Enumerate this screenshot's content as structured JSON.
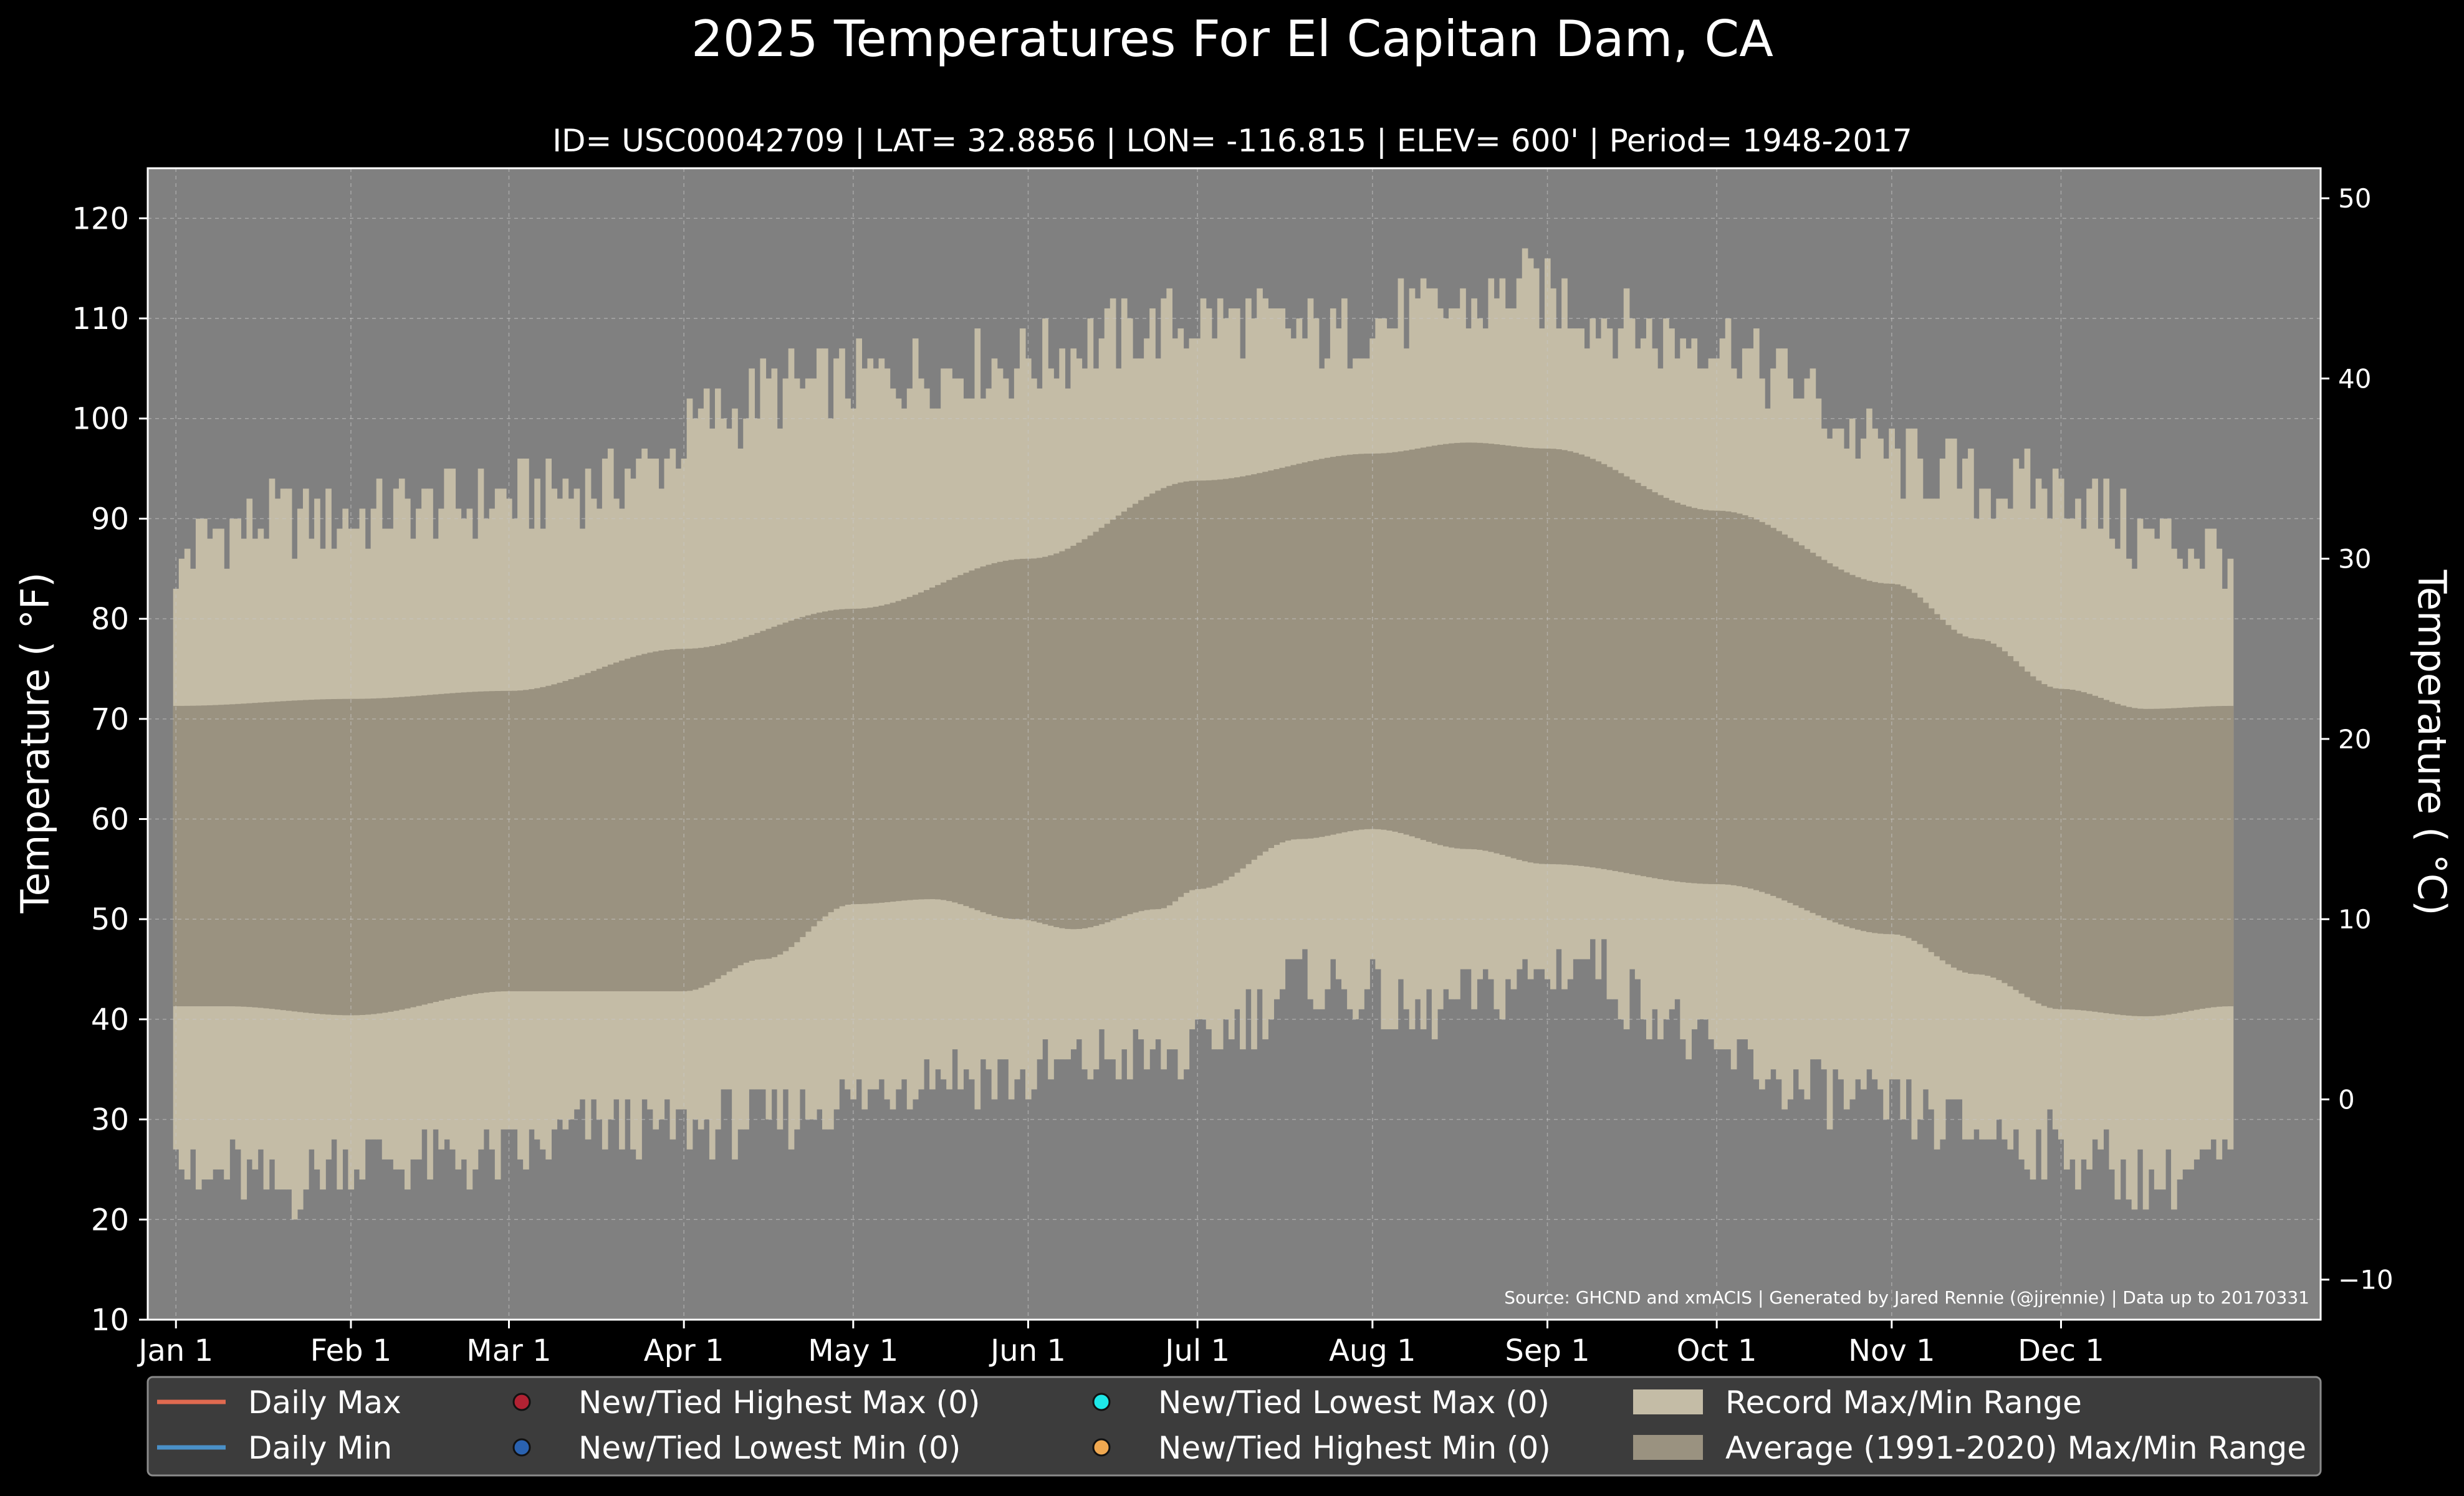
{
  "title": "2025 Temperatures For El Capitan Dam, CA",
  "subtitle": "ID= USC00042709 | LAT= 32.8856 | LON= -116.815 | ELEV= 600' | Period= 1948-2017",
  "source": "Source: GHCND and xmACIS | Generated by Jared Rennie (@jjrennie) | Data up to 20170331",
  "colors": {
    "background": "#000000",
    "plot_bg": "#808080",
    "record_range": "#c4bca6",
    "average_range": "#9a9280",
    "daily_max": "#e06a50",
    "daily_min": "#4a90c8",
    "highest_max": "#b22233",
    "lowest_min": "#2a62b0",
    "lowest_max": "#1ee8e8",
    "highest_min": "#f0a850",
    "legend_bg": "#3c3c3c"
  },
  "chart_data": {
    "type": "area",
    "title": "2025 Temperatures For El Capitan Dam, CA",
    "xlabel": "",
    "ylabel": "Temperature ( °F)",
    "ylabel_right": "Temperature ( °C)",
    "ylim": [
      10,
      125
    ],
    "ylim_right": [
      -12.22,
      51.67
    ],
    "yticks": [
      "10",
      "20",
      "30",
      "40",
      "50",
      "60",
      "70",
      "80",
      "90",
      "100",
      "110",
      "120"
    ],
    "yticks_right": [
      "−10",
      "0",
      "10",
      "20",
      "30",
      "40",
      "50"
    ],
    "x_months": [
      "Jan 1",
      "Feb 1",
      "Mar 1",
      "Apr 1",
      "May 1",
      "Jun 1",
      "Jul 1",
      "Aug 1",
      "Sep 1",
      "Oct 1",
      "Nov 1",
      "Dec 1"
    ],
    "month_start_day": [
      1,
      32,
      60,
      91,
      121,
      152,
      182,
      213,
      244,
      274,
      305,
      335
    ],
    "days_in_year": 365,
    "grid": true,
    "legend_placement": "below",
    "record_max_anchors": {
      "day": [
        1,
        3,
        10,
        20,
        30,
        45,
        60,
        75,
        85,
        95,
        110,
        125,
        140,
        155,
        165,
        175,
        185,
        195,
        205,
        215,
        230,
        240,
        245,
        255,
        265,
        275,
        285,
        300,
        310,
        325,
        335,
        350,
        365
      ],
      "value": [
        83,
        87,
        89,
        90,
        90,
        91,
        92,
        93,
        95,
        100,
        103,
        104,
        105,
        106,
        108,
        109,
        110,
        109,
        108,
        110,
        111,
        113,
        112,
        110,
        108,
        108,
        104,
        98,
        95,
        93,
        93,
        88,
        87
      ]
    },
    "record_min_anchors": {
      "day": [
        1,
        5,
        10,
        20,
        30,
        45,
        60,
        75,
        90,
        105,
        120,
        135,
        150,
        165,
        180,
        190,
        200,
        210,
        220,
        230,
        240,
        250,
        260,
        275,
        290,
        305,
        320,
        335,
        350,
        365
      ],
      "value": [
        27,
        23,
        25,
        23,
        26,
        26,
        26,
        29,
        29,
        30,
        32,
        35,
        34,
        36,
        36,
        40,
        44,
        43,
        40,
        42,
        44,
        46,
        42,
        36,
        33,
        31,
        29,
        27,
        24,
        26
      ]
    },
    "series": [
      {
        "name": "Record Max/Min Range",
        "kind": "record_range"
      },
      {
        "name": "Average (1991-2020) Max/Min Range",
        "kind": "average_range",
        "upper_anchors": {
          "day": [
            1,
            32,
            60,
            91,
            121,
            152,
            182,
            213,
            230,
            244,
            274,
            305,
            320,
            335,
            350,
            365
          ],
          "value": [
            71.3,
            72.0,
            72.8,
            77.0,
            81.0,
            86.0,
            93.8,
            96.5,
            97.6,
            97.0,
            90.8,
            83.5,
            78.0,
            73.0,
            71.0,
            71.3
          ]
        },
        "lower_anchors": {
          "day": [
            1,
            10,
            32,
            60,
            91,
            105,
            121,
            135,
            150,
            160,
            175,
            182,
            200,
            213,
            230,
            244,
            274,
            305,
            320,
            335,
            350,
            365
          ],
          "value": [
            41.3,
            41.3,
            40.4,
            42.8,
            42.8,
            46.0,
            51.5,
            52.0,
            50.0,
            49.0,
            51.0,
            53.0,
            58.0,
            59.0,
            57.0,
            55.5,
            53.5,
            48.5,
            44.5,
            41.0,
            40.3,
            41.3
          ]
        }
      },
      {
        "name": "Daily Max",
        "kind": "line",
        "values": []
      },
      {
        "name": "Daily Min",
        "kind": "line",
        "values": []
      }
    ],
    "legend": [
      {
        "label": "Daily Max",
        "marker": "line",
        "color_key": "daily_max"
      },
      {
        "label": "Daily Min",
        "marker": "line",
        "color_key": "daily_min"
      },
      {
        "label": "New/Tied Highest Max (0)",
        "marker": "dot",
        "color_key": "highest_max"
      },
      {
        "label": "New/Tied Lowest Min (0)",
        "marker": "dot",
        "color_key": "lowest_min"
      },
      {
        "label": "New/Tied Lowest Max (0)",
        "marker": "dot",
        "color_key": "lowest_max"
      },
      {
        "label": "New/Tied Highest Min (0)",
        "marker": "dot",
        "color_key": "highest_min"
      },
      {
        "label": "Record Max/Min Range",
        "marker": "patch",
        "color_key": "record_range"
      },
      {
        "label": "Average (1991-2020) Max/Min Range",
        "marker": "patch",
        "color_key": "average_range"
      }
    ]
  }
}
